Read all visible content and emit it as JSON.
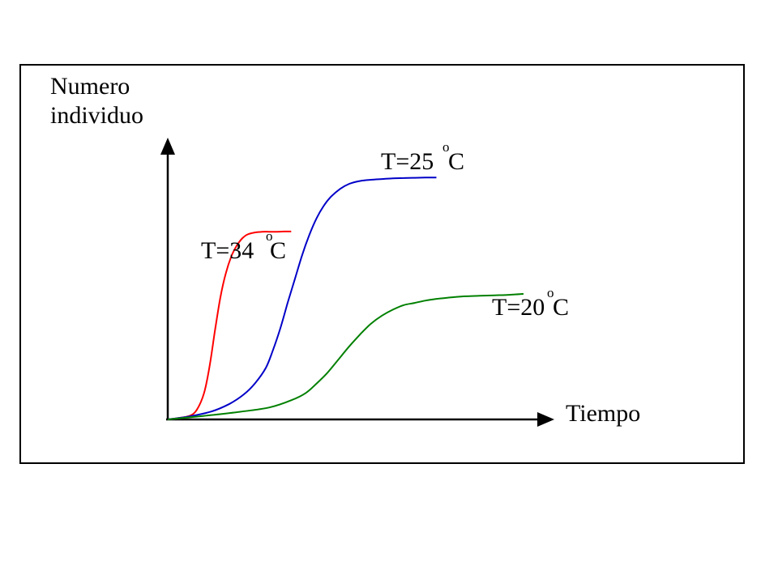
{
  "chart_data": {
    "type": "line",
    "title": "",
    "ylabel": [
      "Numero",
      "individuo"
    ],
    "xlabel": "Tiempo",
    "axes": {
      "ticks": false,
      "grid": false,
      "arrows": true
    },
    "xlim": [
      0,
      100
    ],
    "ylim": [
      0,
      100
    ],
    "series": [
      {
        "name": "T=34°C",
        "label_parts": {
          "prefix": "T=34",
          "degree": "o",
          "unit": "C"
        },
        "color": "#ff0000",
        "x": [
          0,
          3,
          6,
          8,
          10,
          11.5,
          13,
          14.5,
          16,
          17.5,
          19,
          20.5,
          22,
          24,
          26,
          28,
          30,
          32,
          34
        ],
        "y": [
          0,
          0.6,
          1.5,
          4,
          11,
          22,
          37,
          51,
          61,
          68,
          72.5,
          75.5,
          77.2,
          78,
          78.3,
          78.3,
          78.3,
          78.4,
          78.4
        ]
      },
      {
        "name": "T=25°C",
        "label_parts": {
          "prefix": "T=25",
          "degree": "o",
          "unit": "C"
        },
        "color": "#0000c8",
        "x": [
          0,
          6,
          12,
          17,
          21,
          24,
          27,
          29,
          31,
          33,
          35,
          37,
          39,
          41,
          43,
          45,
          47.5,
          50,
          53,
          56,
          59,
          62,
          65,
          68,
          71,
          74
        ],
        "y": [
          0,
          1.3,
          3.3,
          6.5,
          10.5,
          15,
          21.5,
          29,
          38,
          48.5,
          58.5,
          68.5,
          77,
          84,
          89.2,
          93,
          96.2,
          98.3,
          99.5,
          100,
          100.3,
          100.6,
          100.7,
          100.8,
          100.9,
          100.9
        ]
      },
      {
        "name": "T=20°C",
        "label_parts": {
          "prefix": "T=20",
          "degree": "o",
          "unit": "C"
        },
        "color": "#008000",
        "x": [
          0,
          10,
          20,
          28,
          34,
          38,
          41,
          44,
          47,
          50,
          53,
          56,
          59,
          62,
          65,
          68,
          71,
          74,
          78,
          82,
          86,
          90,
          94,
          98
        ],
        "y": [
          0,
          1.5,
          3.2,
          5,
          8,
          11,
          15,
          19.5,
          25,
          30.5,
          35.5,
          40,
          43.3,
          45.8,
          47.7,
          48.6,
          49.6,
          50.3,
          50.9,
          51.4,
          51.6,
          51.8,
          52,
          52.4
        ]
      }
    ]
  }
}
